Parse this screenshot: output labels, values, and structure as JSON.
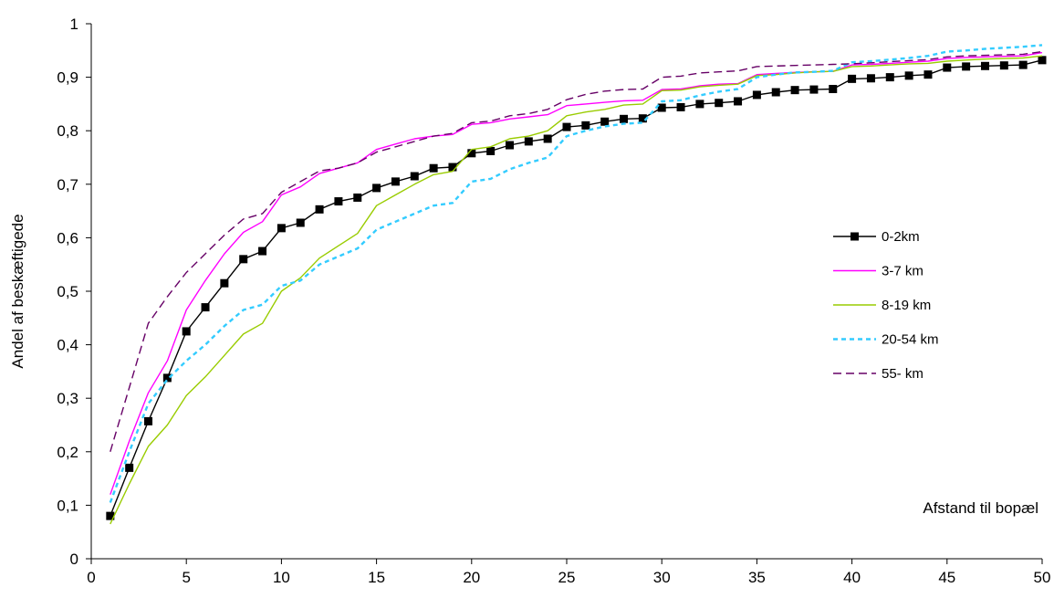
{
  "chart_data": {
    "type": "line",
    "xlabel": "Afstand til bopæl",
    "ylabel": "Andel af beskæftigede",
    "xlim": [
      0,
      50
    ],
    "ylim": [
      0,
      1
    ],
    "x_ticks": [
      0,
      5,
      10,
      15,
      20,
      25,
      30,
      35,
      40,
      45,
      50
    ],
    "x_tick_labels": [
      "0",
      "5",
      "10",
      "15",
      "20",
      "25",
      "30",
      "35",
      "40",
      "45",
      "50"
    ],
    "y_ticks": [
      0,
      0.1,
      0.2,
      0.3,
      0.4,
      0.5,
      0.6,
      0.7,
      0.8,
      0.9,
      1
    ],
    "y_tick_labels": [
      "0",
      "0,1",
      "0,2",
      "0,3",
      "0,4",
      "0,5",
      "0,6",
      "0,7",
      "0,8",
      "0,9",
      "1"
    ],
    "grid": false,
    "legend_position": "right",
    "x": [
      1,
      2,
      3,
      4,
      5,
      6,
      7,
      8,
      9,
      10,
      11,
      12,
      13,
      14,
      15,
      16,
      17,
      18,
      19,
      20,
      21,
      22,
      23,
      24,
      25,
      26,
      27,
      28,
      29,
      30,
      31,
      32,
      33,
      34,
      35,
      36,
      37,
      38,
      39,
      40,
      41,
      42,
      43,
      44,
      45,
      46,
      47,
      48,
      49,
      50
    ],
    "series": [
      {
        "name": "0-2km",
        "color": "#000000",
        "dash": "solid",
        "marker": "square",
        "values": [
          0.08,
          0.17,
          0.257,
          0.338,
          0.425,
          0.47,
          0.515,
          0.56,
          0.575,
          0.618,
          0.628,
          0.653,
          0.668,
          0.675,
          0.693,
          0.705,
          0.715,
          0.73,
          0.732,
          0.758,
          0.762,
          0.773,
          0.78,
          0.785,
          0.807,
          0.81,
          0.817,
          0.822,
          0.823,
          0.843,
          0.844,
          0.85,
          0.852,
          0.855,
          0.867,
          0.872,
          0.876,
          0.877,
          0.878,
          0.897,
          0.898,
          0.9,
          0.903,
          0.905,
          0.918,
          0.92,
          0.921,
          0.922,
          0.923,
          0.932
        ]
      },
      {
        "name": "3-7 km",
        "color": "#ff00ff",
        "dash": "solid",
        "marker": "none",
        "values": [
          0.12,
          0.22,
          0.31,
          0.37,
          0.465,
          0.52,
          0.57,
          0.61,
          0.63,
          0.68,
          0.695,
          0.72,
          0.73,
          0.74,
          0.765,
          0.775,
          0.785,
          0.79,
          0.793,
          0.812,
          0.815,
          0.822,
          0.826,
          0.83,
          0.847,
          0.85,
          0.853,
          0.856,
          0.857,
          0.877,
          0.878,
          0.884,
          0.887,
          0.888,
          0.905,
          0.907,
          0.909,
          0.91,
          0.911,
          0.923,
          0.924,
          0.926,
          0.928,
          0.93,
          0.935,
          0.937,
          0.938,
          0.939,
          0.94,
          0.946
        ]
      },
      {
        "name": "8-19 km",
        "color": "#99cc00",
        "dash": "solid",
        "marker": "none",
        "values": [
          0.065,
          0.14,
          0.21,
          0.25,
          0.305,
          0.34,
          0.38,
          0.42,
          0.44,
          0.5,
          0.525,
          0.562,
          0.585,
          0.608,
          0.66,
          0.68,
          0.7,
          0.718,
          0.724,
          0.765,
          0.77,
          0.785,
          0.79,
          0.8,
          0.828,
          0.835,
          0.84,
          0.848,
          0.85,
          0.875,
          0.876,
          0.882,
          0.885,
          0.887,
          0.903,
          0.905,
          0.908,
          0.91,
          0.911,
          0.92,
          0.921,
          0.923,
          0.925,
          0.926,
          0.93,
          0.932,
          0.934,
          0.935,
          0.936,
          0.94
        ]
      },
      {
        "name": "20-54 km",
        "color": "#33ccff",
        "dash": "dotted",
        "marker": "none",
        "values": [
          0.105,
          0.2,
          0.29,
          0.335,
          0.37,
          0.4,
          0.435,
          0.465,
          0.475,
          0.51,
          0.52,
          0.55,
          0.565,
          0.58,
          0.615,
          0.63,
          0.645,
          0.66,
          0.665,
          0.705,
          0.71,
          0.728,
          0.74,
          0.75,
          0.79,
          0.8,
          0.808,
          0.813,
          0.815,
          0.855,
          0.857,
          0.866,
          0.873,
          0.878,
          0.9,
          0.905,
          0.909,
          0.91,
          0.912,
          0.928,
          0.93,
          0.933,
          0.936,
          0.94,
          0.948,
          0.95,
          0.953,
          0.955,
          0.957,
          0.96
        ]
      },
      {
        "name": "55- km",
        "color": "#660066",
        "dash": "dashed",
        "marker": "none",
        "values": [
          0.2,
          0.32,
          0.44,
          0.49,
          0.535,
          0.57,
          0.605,
          0.635,
          0.645,
          0.685,
          0.705,
          0.725,
          0.73,
          0.74,
          0.76,
          0.77,
          0.78,
          0.79,
          0.795,
          0.815,
          0.818,
          0.828,
          0.832,
          0.84,
          0.858,
          0.868,
          0.874,
          0.877,
          0.878,
          0.9,
          0.902,
          0.908,
          0.91,
          0.912,
          0.92,
          0.921,
          0.922,
          0.923,
          0.924,
          0.925,
          0.927,
          0.929,
          0.931,
          0.933,
          0.938,
          0.94,
          0.941,
          0.942,
          0.943,
          0.948
        ]
      }
    ]
  }
}
